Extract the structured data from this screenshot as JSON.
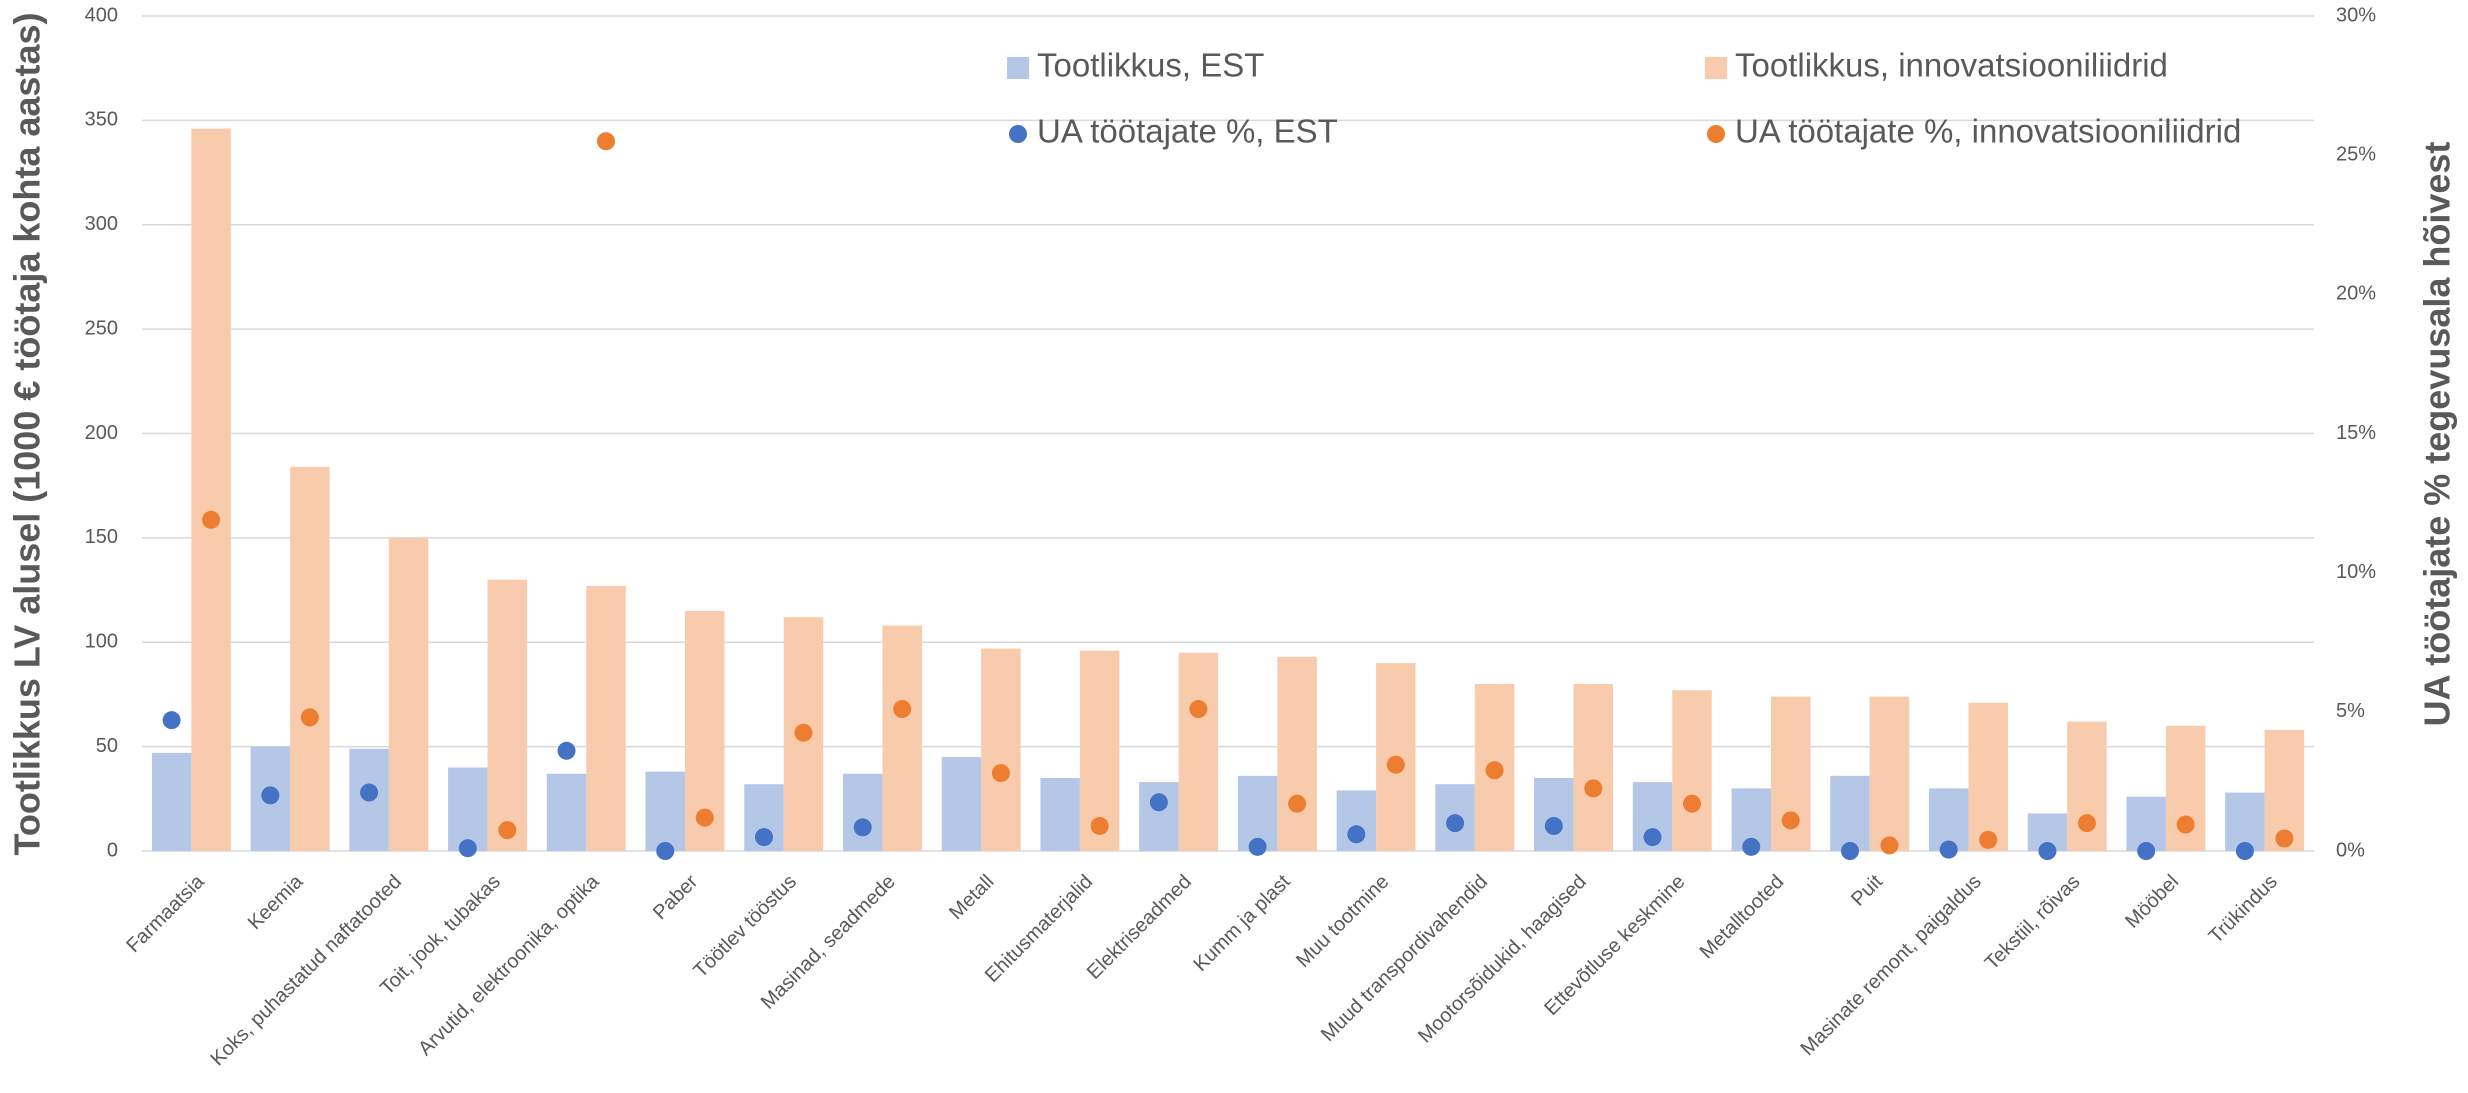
{
  "chart_data": {
    "type": "bar",
    "y_label": "Tootlikkus LV alusel (1000 € töötaja kohta aastas)",
    "y2_label": "UA töötajate % tegevusala hõivest",
    "categories": [
      "Farmaatsia",
      "Keemia",
      "Koks, puhastatud naftatooted",
      "Toit, jook, tubakas",
      "Arvutid, elektroonika, optika",
      "Paber",
      "Töötlev tööstus",
      "Masinad, seadmede",
      "Metall",
      "Ehitusmaterjalid",
      "Elektriseadmed",
      "Kumm ja plast",
      "Muu tootmine",
      "Muud transpordivahendid",
      "Mootorsõidukid, haagised",
      "Ettevõtluse keskmine",
      "Metalltooted",
      "Puit",
      "Masinate remont, paigaldus",
      "Tekstiil, rõivas",
      "Mööbel",
      "Trükindus"
    ],
    "series": [
      {
        "name": "Tootlikkus, EST",
        "type": "bar",
        "color": "#b4c7e7",
        "values": [
          47,
          50,
          49,
          40,
          37,
          38,
          32,
          37,
          45,
          35,
          33,
          36,
          29,
          32,
          35,
          33,
          30,
          36,
          30,
          18,
          26,
          28
        ]
      },
      {
        "name": "Tootlikkus, innovatsiooniliidrid",
        "type": "bar",
        "color": "#f8cbad",
        "values": [
          346,
          184,
          150,
          130,
          127,
          115,
          112,
          108,
          97,
          96,
          95,
          93,
          90,
          80,
          80,
          77,
          74,
          74,
          71,
          62,
          60,
          58
        ]
      },
      {
        "name": "UA töötajate %, EST",
        "type": "scatter",
        "axis": "y2",
        "color": "#4472c4",
        "values": [
          4.7,
          2.0,
          2.1,
          0.1,
          3.6,
          0,
          0.5,
          0.85,
          null,
          null,
          1.75,
          0.15,
          0.6,
          1.0,
          0.9,
          0.5,
          0.15,
          0,
          0.05,
          0,
          0,
          0
        ]
      },
      {
        "name": "UA töötajate %, innovatsiooniliidrid",
        "type": "scatter",
        "axis": "y2",
        "color": "#ed7d31",
        "values": [
          11.9,
          4.8,
          null,
          0.75,
          25.5,
          1.2,
          4.25,
          5.1,
          2.8,
          0.9,
          5.1,
          1.7,
          3.1,
          2.9,
          2.25,
          1.7,
          1.1,
          0.2,
          0.4,
          1.0,
          0.95,
          0.45
        ]
      }
    ],
    "ylim": [
      0,
      400
    ],
    "yticks": [
      0,
      50,
      100,
      150,
      200,
      250,
      300,
      350,
      400
    ],
    "y2lim": [
      0,
      30
    ],
    "y2ticks": [
      {
        "value": 0,
        "label": "0%"
      },
      {
        "value": 5,
        "label": "5%"
      },
      {
        "value": 10,
        "label": "10%"
      },
      {
        "value": 15,
        "label": "15%"
      },
      {
        "value": 20,
        "label": "20%"
      },
      {
        "value": 25,
        "label": "25%"
      },
      {
        "value": 30,
        "label": "30%"
      }
    ],
    "grid": true
  }
}
